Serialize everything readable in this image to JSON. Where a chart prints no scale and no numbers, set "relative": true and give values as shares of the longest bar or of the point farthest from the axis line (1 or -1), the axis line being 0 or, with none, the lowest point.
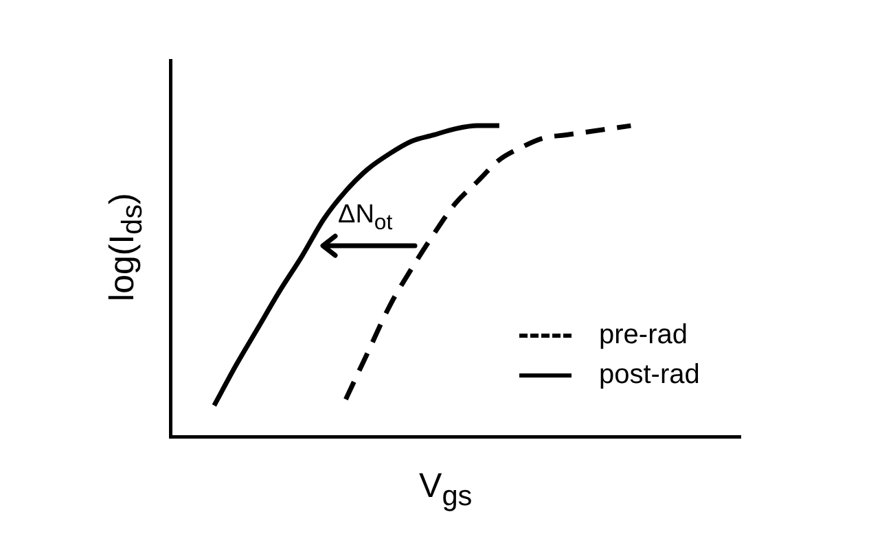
{
  "chart_data": {
    "type": "line",
    "xlabel": "V$_{gs}$",
    "ylabel": "log(I$_{ds}$)",
    "relative": true,
    "grid": false,
    "legend": "bottom right",
    "marker": "none",
    "categories": [
      null,
      null,
      null,
      null,
      null,
      null,
      null,
      null,
      null,
      null,
      null,
      null,
      null,
      null,
      null,
      null,
      null,
      null,
      null,
      null,
      null,
      null,
      null,
      null,
      null,
      null,
      null
    ],
    "series": [
      {
        "name": "pre-rad",
        "color": "#000000",
        "line_style": "dashed",
        "values": [
          null,
          null,
          null,
          null,
          null,
          null,
          null,
          null,
          0.12,
          0.27,
          0.42,
          0.54,
          0.65,
          0.75,
          0.82,
          0.89,
          0.93,
          0.96,
          0.97,
          0.98,
          0.99,
          1.0,
          null,
          null,
          null,
          null,
          null
        ]
      },
      {
        "name": "post-rad",
        "color": "#000000",
        "line_style": "solid",
        "values": [
          null,
          null,
          0.1,
          0.23,
          0.35,
          0.47,
          0.58,
          0.7,
          0.79,
          0.86,
          0.91,
          0.95,
          0.97,
          0.99,
          1.0,
          1.0,
          null,
          null,
          null,
          null,
          null,
          null,
          null,
          null,
          null,
          null,
          null
        ]
      }
    ],
    "annotations": [
      "ΔN$_{ot}$"
    ]
  }
}
